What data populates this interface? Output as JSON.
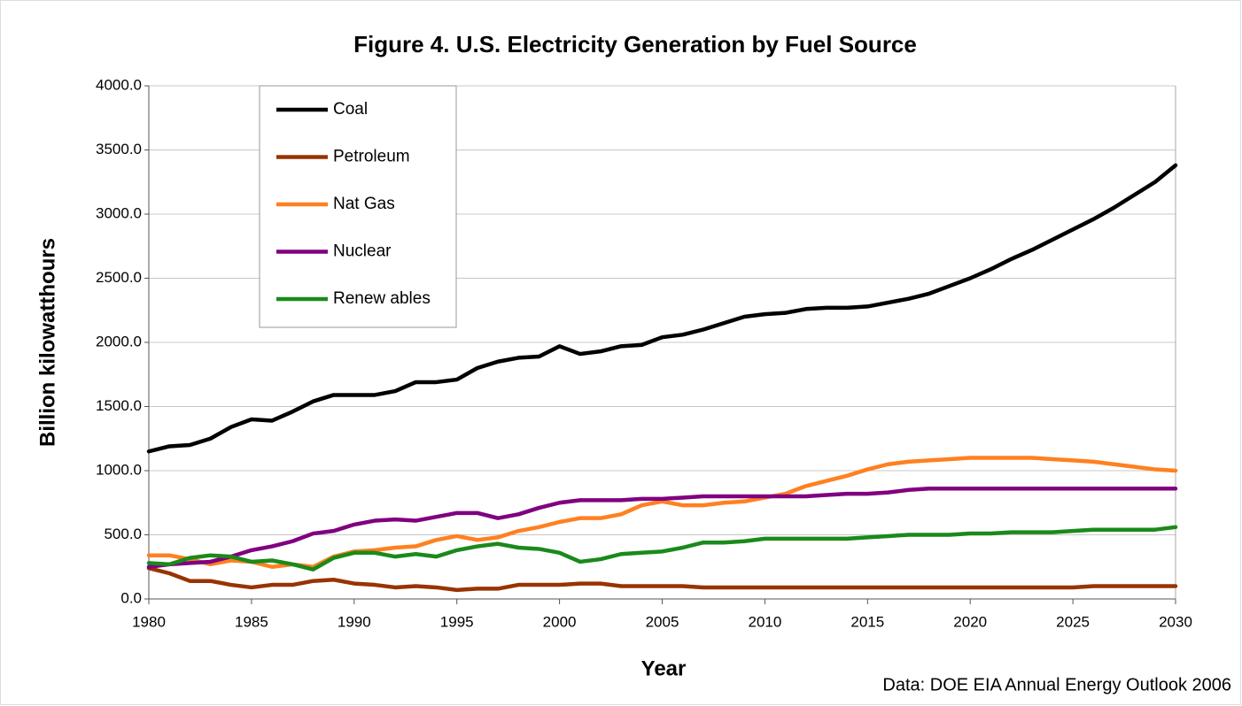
{
  "chart_data": {
    "type": "line",
    "title": "Figure 4.  U.S. Electricity Generation by Fuel Source",
    "xlabel": "Year",
    "ylabel": "Billion kilowatthours",
    "source": "Data: DOE EIA Annual Energy Outlook 2006",
    "x": [
      1980,
      1981,
      1982,
      1983,
      1984,
      1985,
      1986,
      1987,
      1988,
      1989,
      1990,
      1991,
      1992,
      1993,
      1994,
      1995,
      1996,
      1997,
      1998,
      1999,
      2000,
      2001,
      2002,
      2003,
      2004,
      2005,
      2006,
      2007,
      2008,
      2009,
      2010,
      2011,
      2012,
      2013,
      2014,
      2015,
      2016,
      2017,
      2018,
      2019,
      2020,
      2021,
      2022,
      2023,
      2024,
      2025,
      2026,
      2027,
      2028,
      2029,
      2030
    ],
    "xlim": [
      1980,
      2030
    ],
    "xticks": [
      1980,
      1985,
      1990,
      1995,
      2000,
      2005,
      2010,
      2015,
      2020,
      2025,
      2030
    ],
    "ylim": [
      0,
      4000
    ],
    "yticks": [
      {
        "value": 0,
        "label": "0.0"
      },
      {
        "value": 500,
        "label": "500.0"
      },
      {
        "value": 1000,
        "label": "1000.0"
      },
      {
        "value": 1500,
        "label": "1500.0"
      },
      {
        "value": 2000,
        "label": "2000.0"
      },
      {
        "value": 2500,
        "label": "2500.0"
      },
      {
        "value": 3000,
        "label": "3000.0"
      },
      {
        "value": 3500,
        "label": "3500.0"
      },
      {
        "value": 4000,
        "label": "4000.0"
      }
    ],
    "grid": true,
    "legend": "upper left",
    "series": [
      {
        "name": "Coal",
        "color": "#000000",
        "values": [
          1150,
          1190,
          1200,
          1250,
          1340,
          1400,
          1390,
          1460,
          1540,
          1590,
          1590,
          1590,
          1620,
          1690,
          1690,
          1710,
          1800,
          1850,
          1880,
          1890,
          1970,
          1910,
          1930,
          1970,
          1980,
          2040,
          2060,
          2100,
          2150,
          2200,
          2220,
          2230,
          2260,
          2270,
          2270,
          2280,
          2310,
          2340,
          2380,
          2440,
          2500,
          2570,
          2650,
          2720,
          2800,
          2880,
          2960,
          3050,
          3150,
          3250,
          3380
        ]
      },
      {
        "name": "Petroleum",
        "color": "#993300",
        "values": [
          240,
          200,
          140,
          140,
          110,
          90,
          110,
          110,
          140,
          150,
          120,
          110,
          90,
          100,
          90,
          70,
          80,
          80,
          110,
          110,
          110,
          120,
          120,
          100,
          100,
          100,
          100,
          90,
          90,
          90,
          90,
          90,
          90,
          90,
          90,
          90,
          90,
          90,
          90,
          90,
          90,
          90,
          90,
          90,
          90,
          90,
          100,
          100,
          100,
          100,
          100
        ]
      },
      {
        "name": "Nat Gas",
        "color": "#ff8020",
        "values": [
          340,
          340,
          310,
          270,
          300,
          290,
          250,
          270,
          250,
          330,
          370,
          380,
          400,
          410,
          460,
          490,
          460,
          480,
          530,
          560,
          600,
          630,
          630,
          660,
          730,
          760,
          730,
          730,
          750,
          760,
          790,
          820,
          880,
          920,
          960,
          1010,
          1050,
          1070,
          1080,
          1090,
          1100,
          1100,
          1100,
          1100,
          1090,
          1080,
          1070,
          1050,
          1030,
          1010,
          1000
        ]
      },
      {
        "name": "Nuclear",
        "color": "#800080",
        "values": [
          250,
          270,
          280,
          290,
          330,
          380,
          410,
          450,
          510,
          530,
          580,
          610,
          620,
          610,
          640,
          670,
          670,
          630,
          660,
          710,
          750,
          770,
          770,
          770,
          780,
          780,
          790,
          800,
          800,
          800,
          800,
          800,
          800,
          810,
          820,
          820,
          830,
          850,
          860,
          860,
          860,
          860,
          860,
          860,
          860,
          860,
          860,
          860,
          860,
          860,
          860
        ]
      },
      {
        "name": "Renew ables",
        "color": "#1a8a1a",
        "values": [
          280,
          270,
          320,
          340,
          330,
          290,
          300,
          270,
          230,
          320,
          360,
          360,
          330,
          350,
          330,
          380,
          410,
          430,
          400,
          390,
          360,
          290,
          310,
          350,
          360,
          370,
          400,
          440,
          440,
          450,
          470,
          470,
          470,
          470,
          470,
          480,
          490,
          500,
          500,
          500,
          510,
          510,
          520,
          520,
          520,
          530,
          540,
          540,
          540,
          540,
          560
        ]
      }
    ]
  }
}
